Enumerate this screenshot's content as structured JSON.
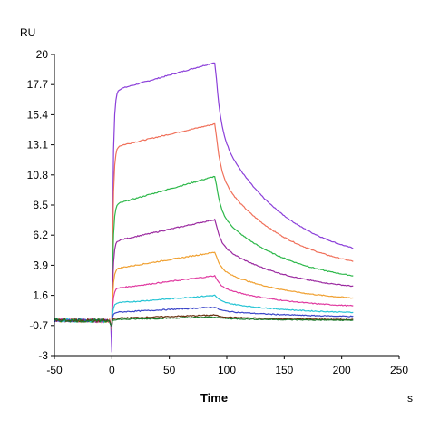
{
  "chart_data": {
    "type": "line",
    "title": "",
    "xlabel": "Time",
    "x_unit": "s",
    "ylabel": "RU",
    "xlim": [
      -50,
      250
    ],
    "ylim": [
      -3,
      20
    ],
    "x_ticks": [
      "-50",
      "0",
      "50",
      "100",
      "150",
      "200",
      "250"
    ],
    "x_tick_values": [
      -50,
      0,
      50,
      100,
      150,
      200,
      250
    ],
    "y_ticks": [
      "20",
      "17.7",
      "15.4",
      "13.1",
      "10.8",
      "8.5",
      "6.2",
      "3.9",
      "1.6",
      "-0.7",
      "-3"
    ],
    "y_tick_values": [
      20,
      17.7,
      15.4,
      13.1,
      10.8,
      8.5,
      6.2,
      3.9,
      1.6,
      -0.7,
      -3
    ],
    "grid": false,
    "legend": "none",
    "injection_start": 0,
    "injection_end": 90,
    "run_end": 210,
    "baseline": -0.35,
    "series": [
      {
        "color": "#8b3fd9",
        "plateau_start": 17.2,
        "association_end": 19.4,
        "dissociation_end": 5.2
      },
      {
        "color": "#f0705a",
        "plateau_start": 12.9,
        "association_end": 14.7,
        "dissociation_end": 4.2
      },
      {
        "color": "#2db84a",
        "plateau_start": 8.5,
        "association_end": 10.7,
        "dissociation_end": 3.1
      },
      {
        "color": "#9b2aa0",
        "plateau_start": 5.7,
        "association_end": 7.4,
        "dissociation_end": 2.3
      },
      {
        "color": "#f0a030",
        "plateau_start": 3.6,
        "association_end": 4.9,
        "dissociation_end": 1.4
      },
      {
        "color": "#e03aa0",
        "plateau_start": 2.1,
        "association_end": 3.1,
        "dissociation_end": 0.8
      },
      {
        "color": "#25c4d4",
        "plateau_start": 1.0,
        "association_end": 1.6,
        "dissociation_end": 0.3
      },
      {
        "color": "#3a45c8",
        "plateau_start": 0.3,
        "association_end": 0.7,
        "dissociation_end": 0.0
      },
      {
        "color": "#6b3010",
        "plateau_start": -0.15,
        "association_end": 0.1,
        "dissociation_end": -0.25
      },
      {
        "color": "#1a7a2a",
        "plateau_start": -0.25,
        "association_end": -0.05,
        "dissociation_end": -0.3
      }
    ]
  }
}
